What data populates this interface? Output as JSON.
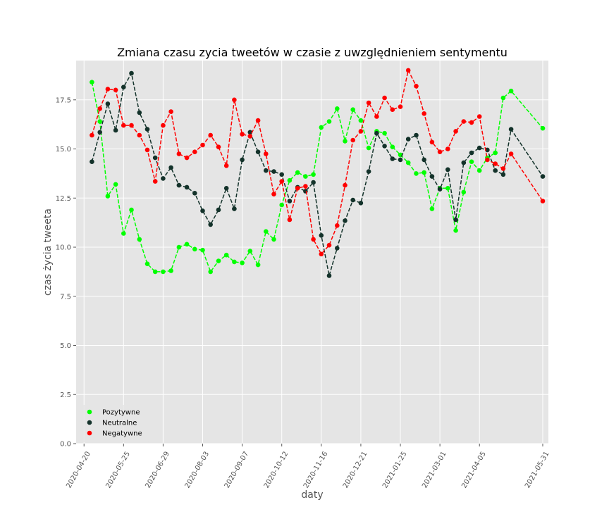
{
  "chart_data": {
    "type": "line",
    "title": "Zmiana czasu zycia tweetów w czasie z uwzględnieniem sentymentu",
    "xlabel": "daty",
    "ylabel": "czas życia tweeta",
    "ylim": [
      0,
      19.5
    ],
    "xlim": [
      "2020-04-13",
      "2021-06-05"
    ],
    "yticks": [
      "0.0",
      "2.5",
      "5.0",
      "7.5",
      "10.0",
      "12.5",
      "15.0",
      "17.5"
    ],
    "xticks": [
      "2020-04-20",
      "2020-05-25",
      "2020-06-29",
      "2020-08-03",
      "2020-09-07",
      "2020-10-12",
      "2020-11-16",
      "2020-12-21",
      "2021-01-25",
      "2021-03-01",
      "2021-04-05",
      "2021-05-31"
    ],
    "grid": true,
    "legend_position": "lower-left",
    "dates": [
      "2020-04-27",
      "2020-05-04",
      "2020-05-11",
      "2020-05-18",
      "2020-05-25",
      "2020-06-01",
      "2020-06-08",
      "2020-06-15",
      "2020-06-22",
      "2020-06-29",
      "2020-07-06",
      "2020-07-13",
      "2020-07-20",
      "2020-07-27",
      "2020-08-03",
      "2020-08-10",
      "2020-08-17",
      "2020-08-24",
      "2020-08-31",
      "2020-09-07",
      "2020-09-14",
      "2020-09-21",
      "2020-09-28",
      "2020-10-05",
      "2020-10-12",
      "2020-10-19",
      "2020-10-26",
      "2020-11-02",
      "2020-11-09",
      "2020-11-16",
      "2020-11-23",
      "2020-11-30",
      "2020-12-07",
      "2020-12-14",
      "2020-12-21",
      "2020-12-28",
      "2021-01-04",
      "2021-01-11",
      "2021-01-18",
      "2021-01-25",
      "2021-02-01",
      "2021-02-08",
      "2021-02-15",
      "2021-02-22",
      "2021-03-01",
      "2021-03-08",
      "2021-03-15",
      "2021-03-22",
      "2021-03-29",
      "2021-04-05",
      "2021-04-12",
      "2021-04-19",
      "2021-04-26",
      "2021-05-03",
      "2021-05-31"
    ],
    "series": [
      {
        "name": "Pozytywne",
        "color": "#00ff00",
        "values": [
          18.4,
          16.4,
          12.6,
          13.2,
          10.7,
          11.9,
          10.4,
          9.15,
          8.75,
          8.75,
          8.8,
          10.0,
          10.15,
          9.9,
          9.85,
          8.75,
          9.3,
          9.6,
          9.25,
          9.2,
          9.8,
          9.1,
          10.8,
          10.4,
          12.15,
          13.4,
          13.8,
          13.6,
          13.7,
          16.1,
          16.4,
          17.05,
          15.4,
          17.0,
          16.45,
          15.05,
          15.9,
          15.8,
          15.1,
          14.7,
          14.3,
          13.75,
          13.8,
          11.95,
          13.0,
          13.0,
          10.85,
          12.8,
          14.35,
          13.9,
          14.55,
          14.8,
          17.6,
          17.95,
          16.05
        ]
      },
      {
        "name": "Neutralne",
        "color": "#13322a",
        "values": [
          14.35,
          15.85,
          17.3,
          15.95,
          18.15,
          18.85,
          16.85,
          16.0,
          14.55,
          13.5,
          14.05,
          13.15,
          13.05,
          12.75,
          11.85,
          11.15,
          11.9,
          13.0,
          11.95,
          14.45,
          15.85,
          14.85,
          13.9,
          13.85,
          13.7,
          12.35,
          13.05,
          12.85,
          13.3,
          10.6,
          8.55,
          9.95,
          11.35,
          12.4,
          12.25,
          13.85,
          15.8,
          15.15,
          14.5,
          14.45,
          15.5,
          15.7,
          14.45,
          13.6,
          12.95,
          13.95,
          11.4,
          14.3,
          14.8,
          15.05,
          14.95,
          13.9,
          13.7,
          16.0,
          13.6
        ]
      },
      {
        "name": "Negatywne",
        "color": "#ff0000",
        "values": [
          15.7,
          17.05,
          18.05,
          18.0,
          16.2,
          16.2,
          15.7,
          14.95,
          13.35,
          16.2,
          16.9,
          14.75,
          14.55,
          14.85,
          15.2,
          15.7,
          15.1,
          14.15,
          17.5,
          15.75,
          15.65,
          16.45,
          14.75,
          12.7,
          13.35,
          11.4,
          13.0,
          13.1,
          10.4,
          9.65,
          10.1,
          11.1,
          13.15,
          15.45,
          15.9,
          17.35,
          16.65,
          17.6,
          17.0,
          17.15,
          19.0,
          18.2,
          16.8,
          15.35,
          14.85,
          15.0,
          15.9,
          16.4,
          16.35,
          16.65,
          14.45,
          14.25,
          14.0,
          14.75,
          12.35
        ]
      }
    ]
  }
}
